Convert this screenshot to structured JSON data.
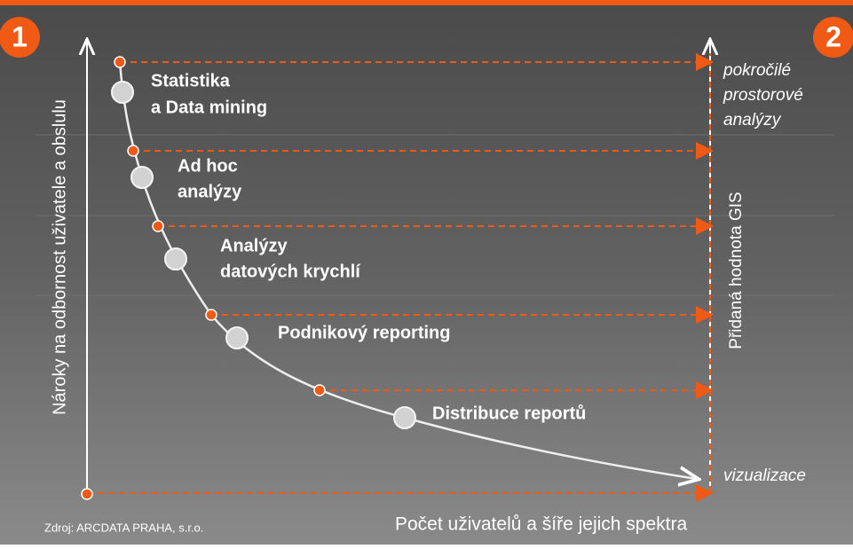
{
  "badges": [
    "1",
    "2"
  ],
  "stages": [
    {
      "lines": [
        "Statistika",
        "a Data mining"
      ]
    },
    {
      "lines": [
        "Ad hoc",
        "analýzy"
      ]
    },
    {
      "lines": [
        "Analýzy",
        "datových krychlí"
      ]
    },
    {
      "lines": [
        "Podnikový reporting"
      ]
    },
    {
      "lines": [
        "Distribuce reportů"
      ]
    }
  ],
  "right_axis": {
    "top_lines": [
      "pokročilé",
      "prostorové",
      "analýzy"
    ],
    "bottom": "vizualizace",
    "label": "Přidaná hodnota GIS"
  },
  "y_axis_label": "Nároky na odbornost uživatele a obslulu",
  "x_axis_label": "Počet uživatelů a šíře jejich spektra",
  "source": "Zdroj: ARCDATA PRAHA, s.r.o."
}
